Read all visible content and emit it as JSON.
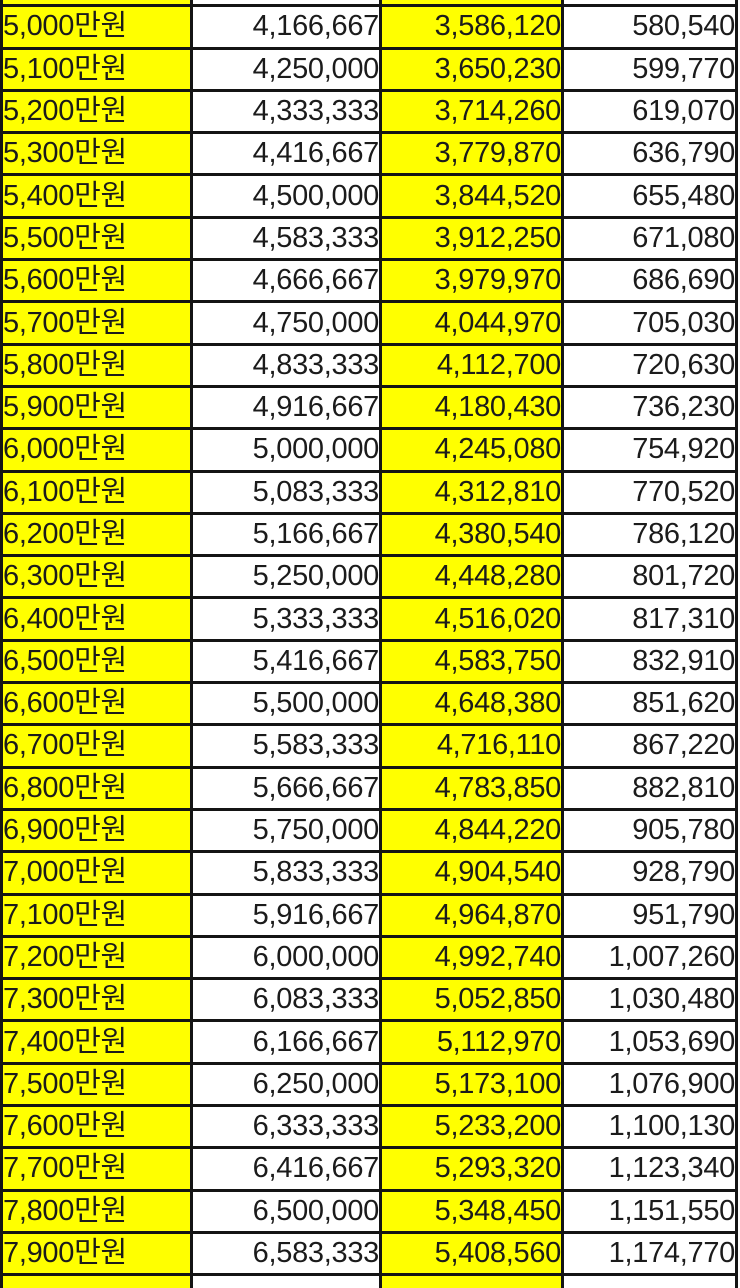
{
  "colors": {
    "highlight_yellow": "#ffff00",
    "cell_white": "#ffffff",
    "border_black": "#141414",
    "text": "#1b1b1b"
  },
  "table": {
    "rows": [
      {
        "label": "5,000만원",
        "col2": "4,166,667",
        "col3": "3,586,120",
        "col4": "580,540"
      },
      {
        "label": "5,100만원",
        "col2": "4,250,000",
        "col3": "3,650,230",
        "col4": "599,770"
      },
      {
        "label": "5,200만원",
        "col2": "4,333,333",
        "col3": "3,714,260",
        "col4": "619,070"
      },
      {
        "label": "5,300만원",
        "col2": "4,416,667",
        "col3": "3,779,870",
        "col4": "636,790"
      },
      {
        "label": "5,400만원",
        "col2": "4,500,000",
        "col3": "3,844,520",
        "col4": "655,480"
      },
      {
        "label": "5,500만원",
        "col2": "4,583,333",
        "col3": "3,912,250",
        "col4": "671,080"
      },
      {
        "label": "5,600만원",
        "col2": "4,666,667",
        "col3": "3,979,970",
        "col4": "686,690"
      },
      {
        "label": "5,700만원",
        "col2": "4,750,000",
        "col3": "4,044,970",
        "col4": "705,030"
      },
      {
        "label": "5,800만원",
        "col2": "4,833,333",
        "col3": "4,112,700",
        "col4": "720,630"
      },
      {
        "label": "5,900만원",
        "col2": "4,916,667",
        "col3": "4,180,430",
        "col4": "736,230"
      },
      {
        "label": "6,000만원",
        "col2": "5,000,000",
        "col3": "4,245,080",
        "col4": "754,920"
      },
      {
        "label": "6,100만원",
        "col2": "5,083,333",
        "col3": "4,312,810",
        "col4": "770,520"
      },
      {
        "label": "6,200만원",
        "col2": "5,166,667",
        "col3": "4,380,540",
        "col4": "786,120"
      },
      {
        "label": "6,300만원",
        "col2": "5,250,000",
        "col3": "4,448,280",
        "col4": "801,720"
      },
      {
        "label": "6,400만원",
        "col2": "5,333,333",
        "col3": "4,516,020",
        "col4": "817,310"
      },
      {
        "label": "6,500만원",
        "col2": "5,416,667",
        "col3": "4,583,750",
        "col4": "832,910"
      },
      {
        "label": "6,600만원",
        "col2": "5,500,000",
        "col3": "4,648,380",
        "col4": "851,620"
      },
      {
        "label": "6,700만원",
        "col2": "5,583,333",
        "col3": "4,716,110",
        "col4": "867,220"
      },
      {
        "label": "6,800만원",
        "col2": "5,666,667",
        "col3": "4,783,850",
        "col4": "882,810"
      },
      {
        "label": "6,900만원",
        "col2": "5,750,000",
        "col3": "4,844,220",
        "col4": "905,780"
      },
      {
        "label": "7,000만원",
        "col2": "5,833,333",
        "col3": "4,904,540",
        "col4": "928,790"
      },
      {
        "label": "7,100만원",
        "col2": "5,916,667",
        "col3": "4,964,870",
        "col4": "951,790"
      },
      {
        "label": "7,200만원",
        "col2": "6,000,000",
        "col3": "4,992,740",
        "col4": "1,007,260"
      },
      {
        "label": "7,300만원",
        "col2": "6,083,333",
        "col3": "5,052,850",
        "col4": "1,030,480"
      },
      {
        "label": "7,400만원",
        "col2": "6,166,667",
        "col3": "5,112,970",
        "col4": "1,053,690"
      },
      {
        "label": "7,500만원",
        "col2": "6,250,000",
        "col3": "5,173,100",
        "col4": "1,076,900"
      },
      {
        "label": "7,600만원",
        "col2": "6,333,333",
        "col3": "5,233,200",
        "col4": "1,100,130"
      },
      {
        "label": "7,700만원",
        "col2": "6,416,667",
        "col3": "5,293,320",
        "col4": "1,123,340"
      },
      {
        "label": "7,800만원",
        "col2": "6,500,000",
        "col3": "5,348,450",
        "col4": "1,151,550"
      },
      {
        "label": "7,900만원",
        "col2": "6,583,333",
        "col3": "5,408,560",
        "col4": "1,174,770"
      }
    ]
  }
}
